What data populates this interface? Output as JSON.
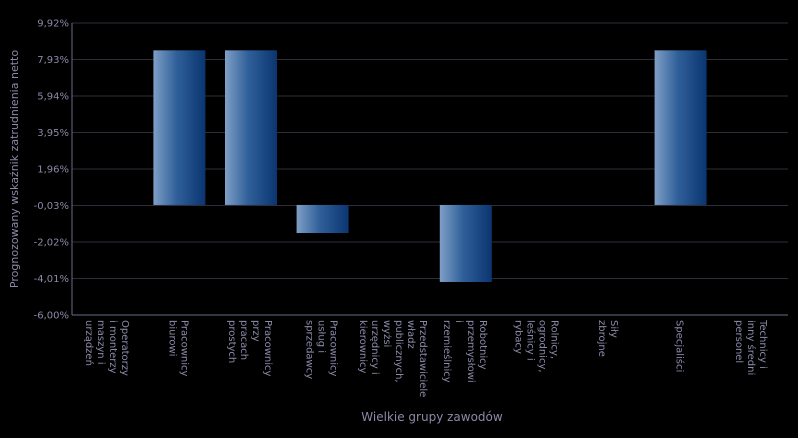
{
  "chart_data": {
    "type": "bar",
    "x_label": "Wielkie grupy zawodów",
    "y_label": "Prognozowany wskaźnik zatrudnienia netto",
    "categories": [
      "Operatorzy i monterzy maszyn i urządzeń",
      "Pracownicy biurowi",
      "Pracownicy przy pracach prostych",
      "Pracownicy usług i sprzedawcy",
      "Przedstawiciele władz publicznych, wyżsi urzędnicy i kierownicy",
      "Robotnicy przemysłowi i rzemieślnicy",
      "Rolnicy, ogrodnicy, leśnicy i rybacy",
      "Siły zbrojne",
      "Specjaliści",
      "Technicy i inny średni personel"
    ],
    "values": [
      0,
      8.43,
      8.43,
      -1.53,
      0,
      -4.2,
      0,
      0,
      8.43,
      0
    ],
    "color": "#1d4f8c",
    "ylim": [
      -6.0,
      9.92
    ],
    "yticks": [
      {
        "value": -6.0,
        "label": "-6,00%"
      },
      {
        "value": -4.01,
        "label": "-4,01%"
      },
      {
        "value": -2.02,
        "label": "-2,02%"
      },
      {
        "value": -0.03,
        "label": "-0,03%"
      },
      {
        "value": 1.96,
        "label": "1,96%"
      },
      {
        "value": 3.95,
        "label": "3,95%"
      },
      {
        "value": 5.94,
        "label": "5,94%"
      },
      {
        "value": 7.93,
        "label": "7,93%"
      },
      {
        "value": 9.92,
        "label": "9,92%"
      }
    ],
    "grid": true
  }
}
